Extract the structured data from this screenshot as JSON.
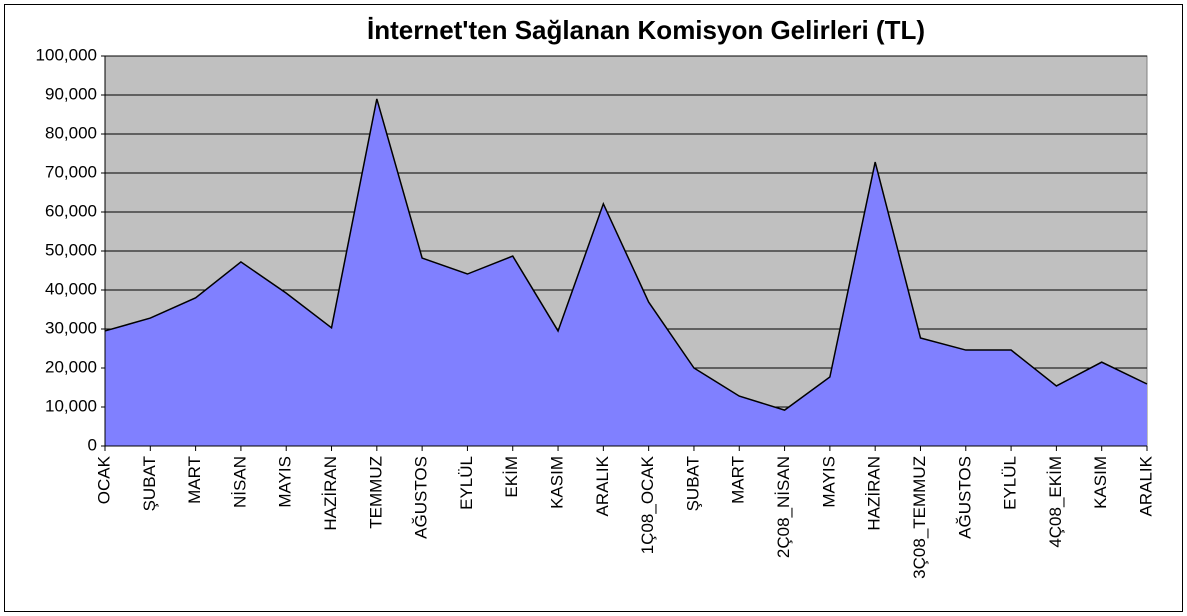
{
  "chart_data": {
    "type": "area",
    "title": "İnternet'ten Sağlanan Komisyon Gelirleri (TL)",
    "categories": [
      "OCAK",
      "ŞUBAT",
      "MART",
      "NİSAN",
      "MAYIS",
      "HAZİRAN",
      "TEMMUZ",
      "AĞUSTOS",
      "EYLÜL",
      "EKİM",
      "KASIM",
      "ARALIK",
      "1Ç08_OCAK",
      "ŞUBAT",
      "MART",
      "2Ç08_NİSAN",
      "MAYIS",
      "HAZİRAN",
      "3Ç08_TEMMUZ",
      "AĞUSTOS",
      "EYLÜL",
      "4Ç08_EKİM",
      "KASIM",
      "ARALIK"
    ],
    "values": [
      29500,
      32800,
      38000,
      47200,
      39200,
      30300,
      89000,
      48200,
      44100,
      48700,
      29500,
      62100,
      36900,
      20000,
      12800,
      9200,
      17700,
      72800,
      27700,
      24600,
      24600,
      15400,
      21500,
      15900
    ],
    "color": "#8080ff",
    "line_color": "#000000",
    "plot_background": "#c0c0c0",
    "ylim": [
      0,
      100000
    ],
    "yticks": [
      0,
      {
        "value": 10000,
        "label": "10,000"
      },
      {
        "value": 20000,
        "label": "20,000"
      },
      {
        "value": 30000,
        "label": "30,000"
      },
      {
        "value": 40000,
        "label": "40,000"
      },
      {
        "value": 50000,
        "label": "50,000"
      },
      {
        "value": 60000,
        "label": "60,000"
      },
      {
        "value": 70000,
        "label": "70,000"
      },
      {
        "value": 80000,
        "label": "80,000"
      },
      {
        "value": 90000,
        "label": "90,000"
      },
      {
        "value": 100000,
        "label": "100,000"
      }
    ],
    "grid": true
  }
}
